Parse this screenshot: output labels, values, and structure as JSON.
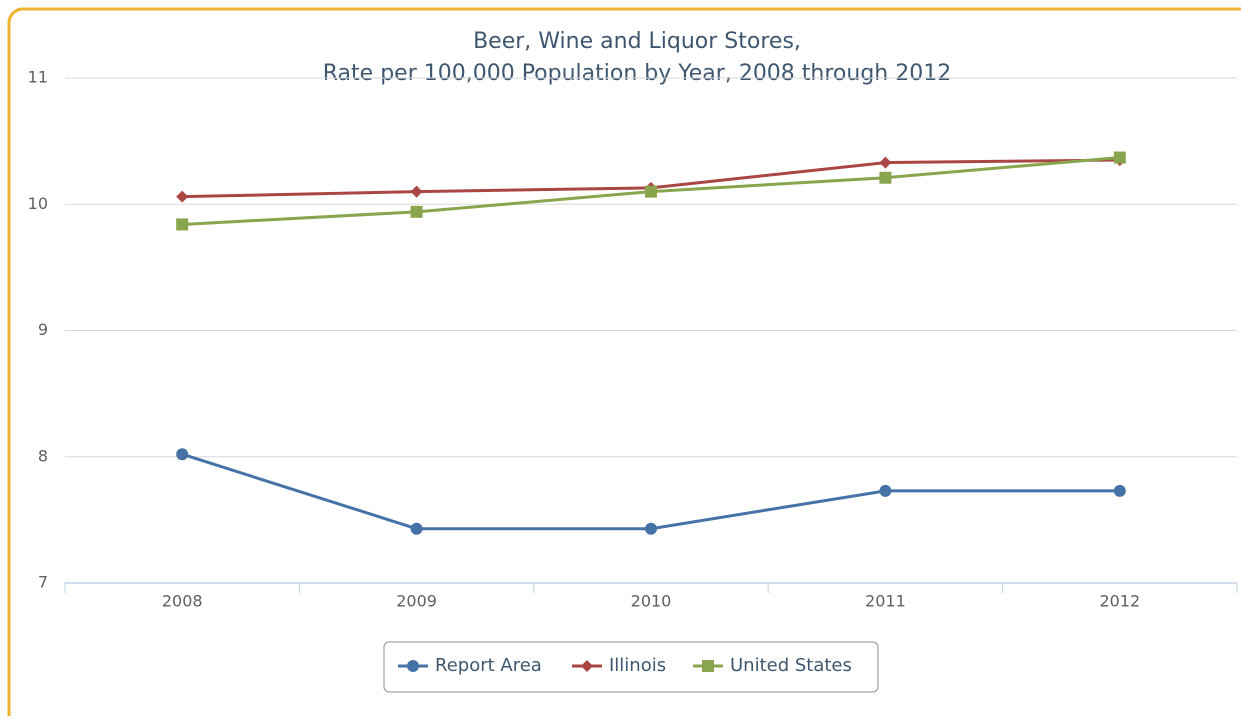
{
  "chart_data": {
    "type": "line",
    "title": [
      "Beer, Wine and Liquor Stores,",
      "Rate per 100,000 Population by Year, 2008 through 2012"
    ],
    "categories": [
      "2008",
      "2009",
      "2010",
      "2011",
      "2012"
    ],
    "series": [
      {
        "name": "Report Area",
        "color": "#4572a7",
        "marker": "circle",
        "values": [
          8.02,
          7.43,
          7.43,
          7.73,
          7.73
        ]
      },
      {
        "name": "Illinois",
        "color": "#aa4643",
        "marker": "diamond",
        "values": [
          10.06,
          10.1,
          10.13,
          10.33,
          10.35
        ]
      },
      {
        "name": "United States",
        "color": "#89a54e",
        "marker": "square",
        "values": [
          9.84,
          9.94,
          10.1,
          10.21,
          10.37
        ]
      }
    ],
    "ylim": [
      7,
      11
    ],
    "yticks": [
      7,
      8,
      9,
      10,
      11
    ],
    "grid": true,
    "legend": "bottom"
  }
}
